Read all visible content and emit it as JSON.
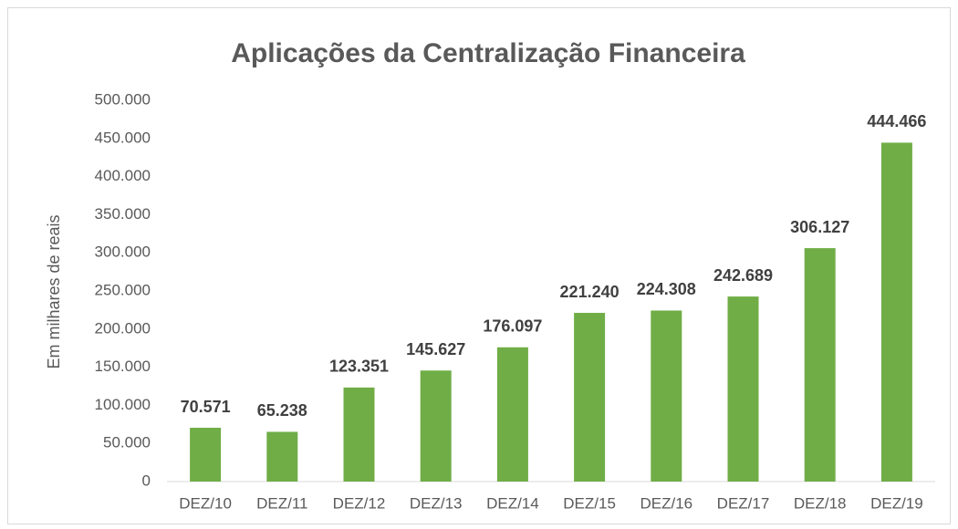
{
  "chart_data": {
    "type": "bar",
    "title": "Aplicações da Centralização Financeira",
    "y_label": "Em milhares de reais",
    "categories": [
      "DEZ/10",
      "DEZ/11",
      "DEZ/12",
      "DEZ/13",
      "DEZ/14",
      "DEZ/15",
      "DEZ/16",
      "DEZ/17",
      "DEZ/18",
      "DEZ/19"
    ],
    "values": [
      70571,
      65238,
      123351,
      145627,
      176097,
      221240,
      224308,
      242689,
      306127,
      444466
    ],
    "value_labels": [
      "70.571",
      "65.238",
      "123.351",
      "145.627",
      "176.097",
      "221.240",
      "224.308",
      "242.689",
      "306.127",
      "444.466"
    ],
    "color": "#70ad47",
    "ylim": [
      0,
      500000
    ],
    "yticks": [
      0,
      {
        "value": 50000,
        "label": "50.000"
      },
      {
        "value": 100000,
        "label": "100.000"
      },
      {
        "value": 150000,
        "label": "150.000"
      },
      {
        "value": 200000,
        "label": "200.000"
      },
      {
        "value": 250000,
        "label": "250.000"
      },
      {
        "value": 300000,
        "label": "300.000"
      },
      {
        "value": 350000,
        "label": "350.000"
      },
      {
        "value": 400000,
        "label": "400.000"
      },
      {
        "value": 450000,
        "label": "450.000"
      },
      {
        "value": 500000,
        "label": "500.000"
      }
    ],
    "grid": false
  }
}
